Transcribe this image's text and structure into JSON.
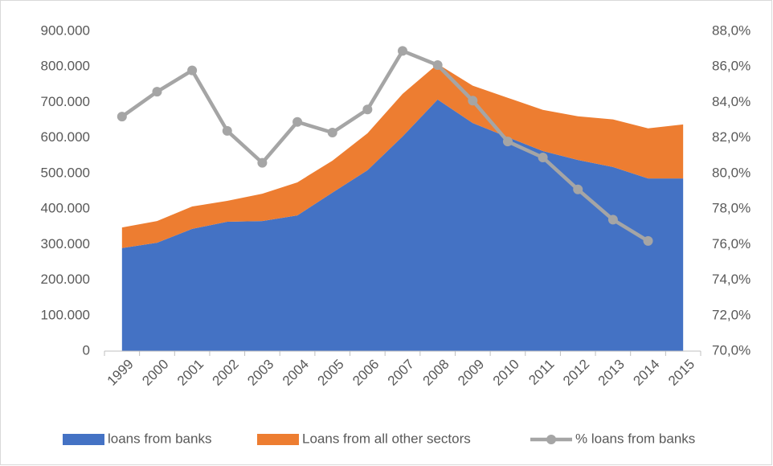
{
  "chart_data": {
    "type": "stacked-area-line",
    "categories": [
      "1999",
      "2000",
      "2001",
      "2002",
      "2003",
      "2004",
      "2005",
      "2006",
      "2007",
      "2008",
      "2009",
      "2010",
      "2011",
      "2012",
      "2013",
      "2014",
      "2015"
    ],
    "series": [
      {
        "name": "loans from banks",
        "color": "#4472c4",
        "type": "area",
        "values": [
          290000,
          305000,
          344000,
          364000,
          366000,
          382000,
          446000,
          509000,
          604000,
          708000,
          642000,
          602000,
          563000,
          538000,
          518000,
          486000,
          486000
        ]
      },
      {
        "name": "Loans from all other sectors",
        "color": "#ed7d31",
        "type": "area",
        "values": [
          58000,
          61000,
          63000,
          59000,
          77000,
          93000,
          90000,
          104000,
          120000,
          100000,
          105000,
          111000,
          116000,
          123000,
          134000,
          141000,
          152000
        ]
      },
      {
        "name": "% loans from banks",
        "color": "#a5a5a5",
        "type": "line",
        "axis": "y2",
        "values": [
          83.2,
          84.6,
          85.8,
          82.4,
          80.6,
          82.9,
          82.3,
          83.6,
          86.9,
          86.1,
          84.1,
          81.8,
          80.9,
          79.1,
          77.4,
          76.2,
          null
        ]
      }
    ],
    "ylim": [
      0,
      900000
    ],
    "yticks": [
      0,
      {
        "value": 100000,
        "label": "100.000"
      },
      {
        "value": 200000,
        "label": "200.000"
      },
      {
        "value": 300000,
        "label": "300.000"
      },
      {
        "value": 400000,
        "label": "400.000"
      },
      {
        "value": 500000,
        "label": "500.000"
      },
      {
        "value": 600000,
        "label": "600.000"
      },
      {
        "value": 700000,
        "label": "700.000"
      },
      {
        "value": 800000,
        "label": "800.000"
      },
      {
        "value": 900000,
        "label": "900.000"
      }
    ],
    "y2lim": [
      70,
      88
    ],
    "y2ticks": [
      {
        "value": 70,
        "label": "70,0%"
      },
      {
        "value": 72,
        "label": "72,0%"
      },
      {
        "value": 74,
        "label": "74,0%"
      },
      {
        "value": 76,
        "label": "76,0%"
      },
      {
        "value": 78,
        "label": "78,0%"
      },
      {
        "value": 80,
        "label": "80,0%"
      },
      {
        "value": 82,
        "label": "82,0%"
      },
      {
        "value": 84,
        "label": "84,0%"
      },
      {
        "value": 86,
        "label": "86,0%"
      },
      {
        "value": 88,
        "label": "88,0%"
      }
    ],
    "legend": "bottom",
    "grid": false
  }
}
